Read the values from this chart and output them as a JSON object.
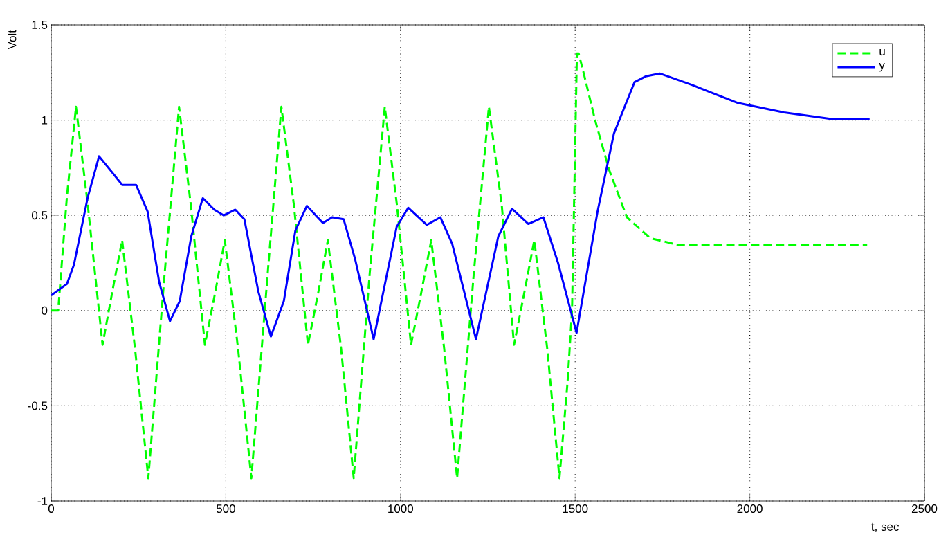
{
  "chart_data": {
    "type": "line",
    "xlabel": "t, sec",
    "ylabel": "Volt",
    "xlim": [
      0,
      2500
    ],
    "ylim": [
      -1,
      1.5
    ],
    "xticks": [
      0,
      500,
      1000,
      1500,
      2000,
      2500
    ],
    "yticks": [
      -1,
      -0.5,
      0,
      0.5,
      1,
      1.5
    ],
    "grid": true,
    "legend": "top right",
    "series": [
      {
        "name": "u",
        "color": "#00ff00",
        "line_style": "dashed",
        "x": [
          0,
          20,
          45,
          71,
          105,
          147,
          175,
          203,
          240,
          278,
          325,
          366,
          400,
          440,
          470,
          497,
          535,
          573,
          620,
          659,
          695,
          735,
          765,
          792,
          830,
          866,
          912,
          955,
          990,
          1030,
          1060,
          1088,
          1125,
          1162,
          1210,
          1253,
          1290,
          1325,
          1355,
          1383,
          1420,
          1455,
          1478,
          1491,
          1505,
          1510,
          1524,
          1557,
          1597,
          1648,
          1715,
          1795,
          1900,
          2050,
          2200,
          2336
        ],
        "values": [
          0,
          0,
          0.6,
          1.07,
          0.55,
          -0.18,
          0.1,
          0.37,
          -0.2,
          -0.88,
          0.2,
          1.07,
          0.55,
          -0.18,
          0.1,
          0.37,
          -0.2,
          -0.88,
          0.2,
          1.07,
          0.55,
          -0.18,
          0.1,
          0.37,
          -0.2,
          -0.88,
          0.2,
          1.07,
          0.55,
          -0.18,
          0.1,
          0.37,
          -0.2,
          -0.88,
          0.2,
          1.07,
          0.55,
          -0.18,
          0.1,
          0.37,
          -0.2,
          -0.88,
          -0.38,
          0,
          1.35,
          1.35,
          1.25,
          1.0,
          0.74,
          0.49,
          0.38,
          0.345,
          0.345,
          0.345,
          0.345,
          0.345
        ]
      },
      {
        "name": "y",
        "color": "#0000ff",
        "line_style": "solid",
        "x": [
          0,
          45,
          65,
          104,
          137,
          177,
          203,
          243,
          276,
          309,
          340,
          368,
          401,
          434,
          467,
          494,
          527,
          553,
          593,
          629,
          666,
          699,
          732,
          778,
          804,
          837,
          870,
          923,
          989,
          1022,
          1075,
          1114,
          1148,
          1216,
          1280,
          1319,
          1366,
          1409,
          1451,
          1504,
          1564,
          1611,
          1670,
          1702,
          1742,
          1834,
          1966,
          2098,
          2231,
          2343
        ],
        "values": [
          0.08,
          0.14,
          0.24,
          0.59,
          0.81,
          0.72,
          0.66,
          0.66,
          0.52,
          0.15,
          -0.056,
          0.05,
          0.39,
          0.59,
          0.53,
          0.5,
          0.53,
          0.48,
          0.1,
          -0.136,
          0.05,
          0.42,
          0.55,
          0.46,
          0.49,
          0.48,
          0.27,
          -0.15,
          0.44,
          0.54,
          0.45,
          0.49,
          0.35,
          -0.15,
          0.39,
          0.535,
          0.455,
          0.49,
          0.25,
          -0.117,
          0.52,
          0.93,
          1.2,
          1.23,
          1.245,
          1.185,
          1.09,
          1.04,
          1.007,
          1.007
        ]
      }
    ]
  }
}
